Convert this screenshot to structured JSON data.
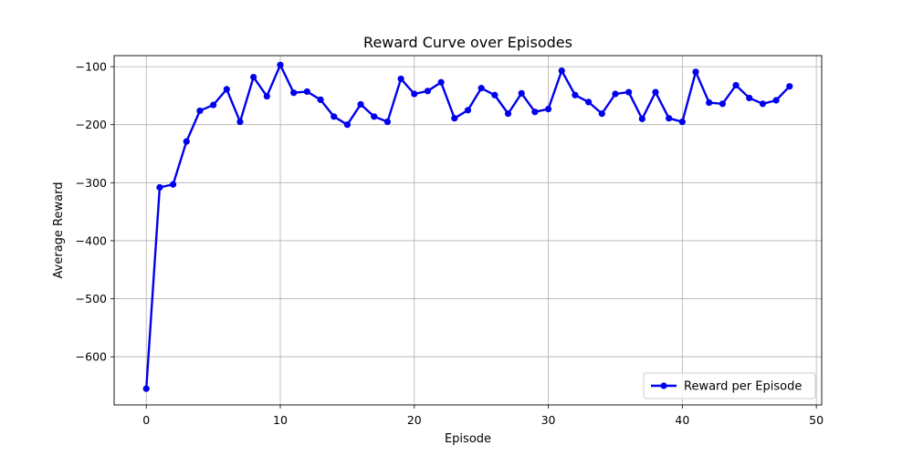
{
  "chart_data": {
    "type": "line",
    "title": "Reward Curve over Episodes",
    "xlabel": "Episode",
    "ylabel": "Average Reward",
    "xlim": [
      -2.4,
      50.4
    ],
    "ylim": [
      -683,
      -81
    ],
    "xticks": [
      0,
      10,
      20,
      30,
      40,
      50
    ],
    "yticks": [
      -600,
      -500,
      -400,
      -300,
      -200,
      -100
    ],
    "grid": true,
    "legend_position": "lower-right",
    "series": [
      {
        "name": "Reward per Episode",
        "color": "#0000ee",
        "marker": "circle",
        "x": [
          0,
          1,
          2,
          3,
          4,
          5,
          6,
          7,
          8,
          9,
          10,
          11,
          12,
          13,
          14,
          15,
          16,
          17,
          18,
          19,
          20,
          21,
          22,
          23,
          24,
          25,
          26,
          27,
          28,
          29,
          30,
          31,
          32,
          33,
          34,
          35,
          36,
          37,
          38,
          39,
          40,
          41,
          42,
          43,
          44,
          45,
          46,
          47,
          48
        ],
        "values": [
          -655,
          -308,
          -303,
          -229,
          -176,
          -166,
          -139,
          -195,
          -118,
          -151,
          -97,
          -145,
          -143,
          -157,
          -186,
          -200,
          -165,
          -186,
          -195,
          -121,
          -147,
          -142,
          -127,
          -189,
          -175,
          -137,
          -149,
          -181,
          -146,
          -178,
          -173,
          -107,
          -149,
          -161,
          -181,
          -147,
          -144,
          -190,
          -144,
          -189,
          -195,
          -109,
          -162,
          -164,
          -132,
          -154,
          -164,
          -158,
          -134
        ]
      }
    ]
  }
}
